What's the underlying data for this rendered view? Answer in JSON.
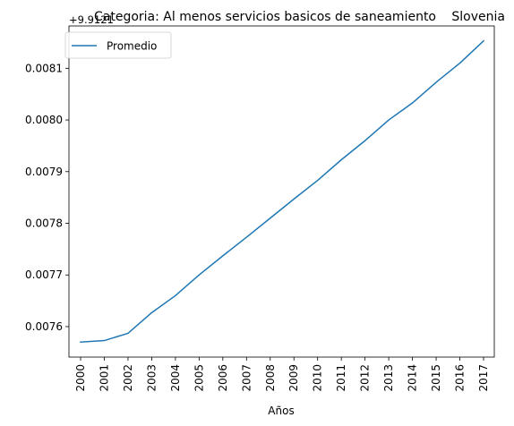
{
  "chart_data": {
    "type": "line",
    "title": "Categoria: Al menos servicios basicos de saneamiento",
    "title_right": "Slovenia",
    "offset_label": "+9.9121",
    "xlabel": "Años",
    "ylabel": "",
    "x": [
      "2000",
      "2001",
      "2002",
      "2003",
      "2004",
      "2005",
      "2006",
      "2007",
      "2008",
      "2009",
      "2010",
      "2011",
      "2012",
      "2013",
      "2014",
      "2015",
      "2016",
      "2017"
    ],
    "series": [
      {
        "name": "Promedio",
        "color": "#1f77b4",
        "values": [
          0.00757,
          0.007573,
          0.007587,
          0.007627,
          0.00766,
          0.0077,
          0.007737,
          0.007773,
          0.00781,
          0.007847,
          0.007883,
          0.007923,
          0.00796,
          0.008,
          0.008033,
          0.008073,
          0.00811,
          0.008153
        ]
      }
    ],
    "yticks": [
      "0.0076",
      "0.0077",
      "0.0078",
      "0.0079",
      "0.0080",
      "0.0081"
    ],
    "ytick_values": [
      0.0076,
      0.0077,
      0.0078,
      0.0079,
      0.008,
      0.0081
    ],
    "ylim": [
      0.007541,
      0.008182
    ],
    "legend_position": "upper-left",
    "grid": false
  }
}
